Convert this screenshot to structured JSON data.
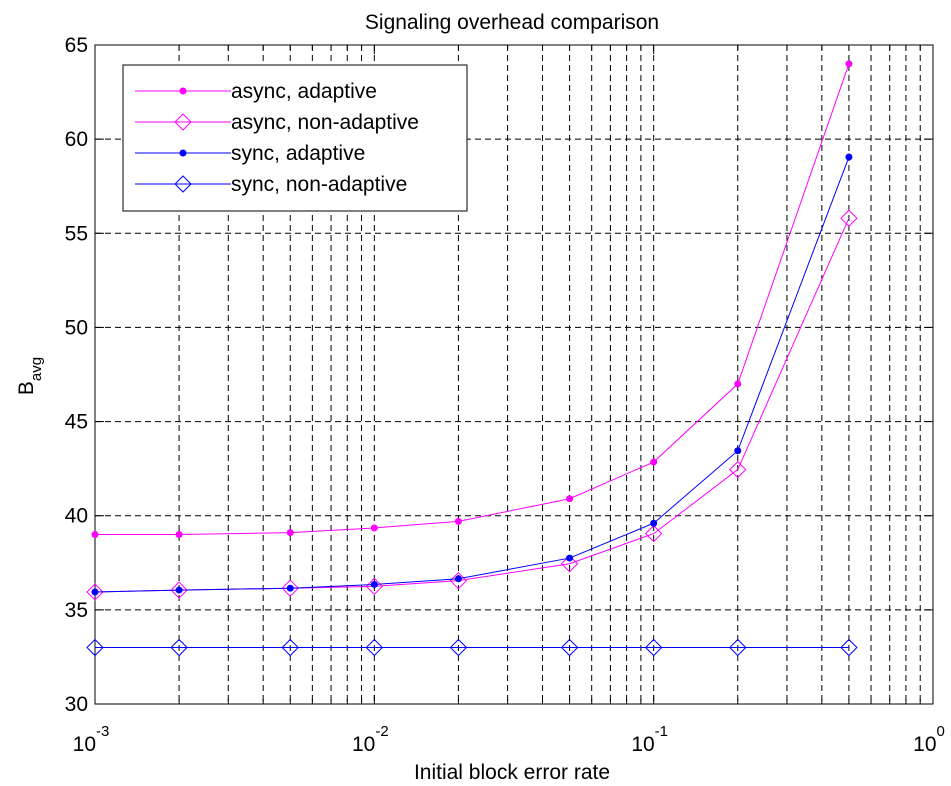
{
  "chart_data": {
    "type": "line",
    "title": "Signaling overhead comparison",
    "xlabel": "Initial block error rate",
    "ylabel": {
      "main": "B",
      "sub": "avg"
    },
    "x_scale": "log",
    "xlim": [
      0.001,
      1
    ],
    "ylim": [
      30,
      65
    ],
    "grid": true,
    "legend_position": "top-left",
    "x_ticks": [
      {
        "value": 0.001,
        "base": "10",
        "exp": "-3"
      },
      {
        "value": 0.01,
        "base": "10",
        "exp": "-2"
      },
      {
        "value": 0.1,
        "base": "10",
        "exp": "-1"
      },
      {
        "value": 1,
        "base": "10",
        "exp": "0"
      }
    ],
    "y_ticks": [
      30,
      35,
      40,
      45,
      50,
      55,
      60,
      65
    ],
    "x": [
      0.001,
      0.002,
      0.005,
      0.01,
      0.02,
      0.05,
      0.1,
      0.2,
      0.5
    ],
    "series": [
      {
        "name": "async, adaptive",
        "color": "#ff00ff",
        "marker": "dot",
        "values": [
          39.0,
          39.0,
          39.1,
          39.35,
          39.7,
          40.9,
          42.85,
          47.0,
          64.0
        ]
      },
      {
        "name": "async, non-adaptive",
        "color": "#ff00ff",
        "marker": "diamond",
        "values": [
          35.95,
          36.05,
          36.15,
          36.25,
          36.55,
          37.45,
          39.05,
          42.45,
          55.8
        ]
      },
      {
        "name": "sync, adaptive",
        "color": "#0000ff",
        "marker": "dot",
        "values": [
          35.95,
          36.05,
          36.15,
          36.35,
          36.65,
          37.75,
          39.6,
          43.45,
          59.05
        ]
      },
      {
        "name": "sync, non-adaptive",
        "color": "#0000ff",
        "marker": "diamond",
        "values": [
          33.0,
          33.0,
          33.0,
          33.0,
          33.0,
          33.0,
          33.0,
          33.0,
          33.0
        ]
      }
    ]
  }
}
